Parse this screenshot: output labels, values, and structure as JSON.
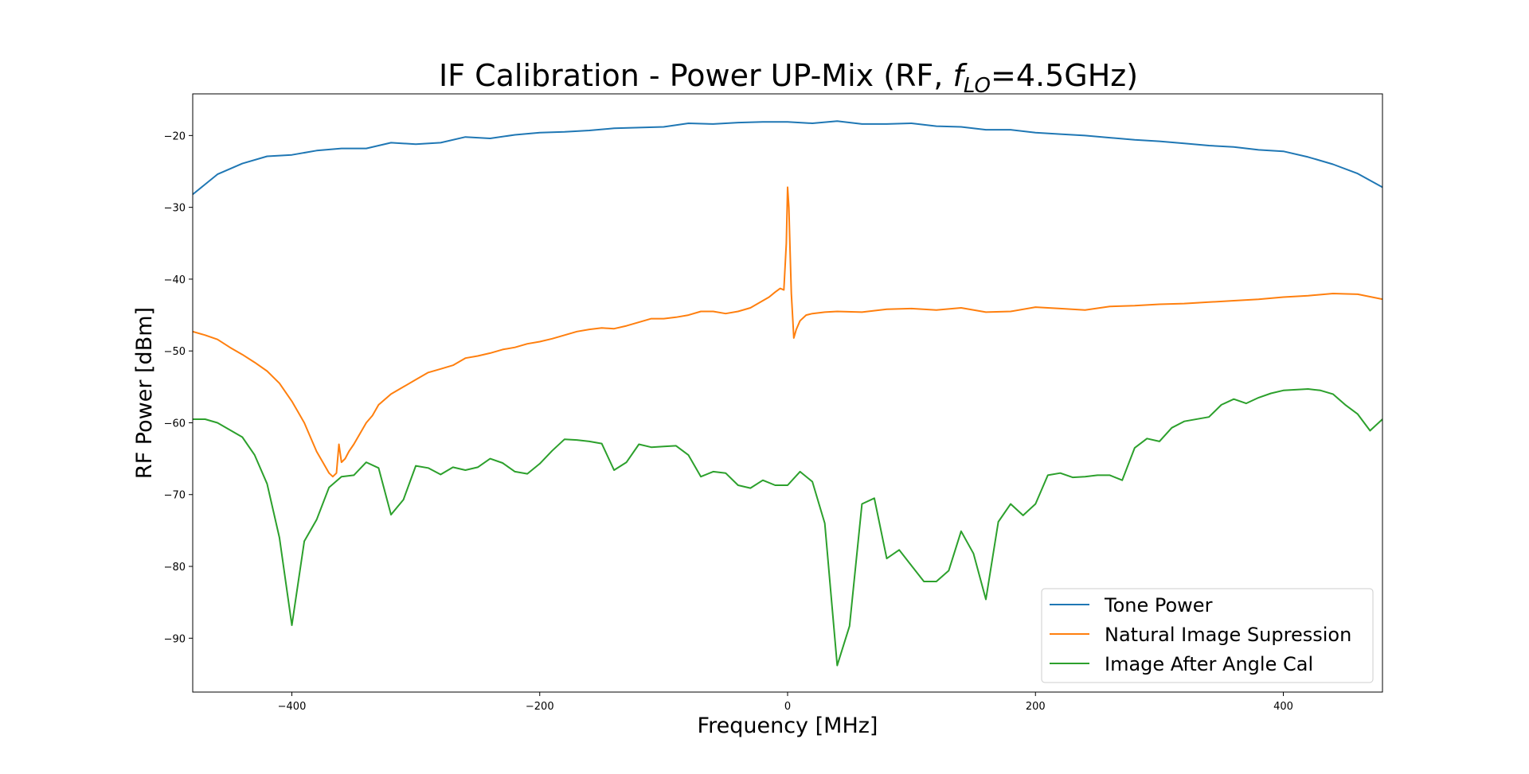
{
  "chart_data": {
    "type": "line",
    "title": {
      "prefix": "IF Calibration - Power UP-Mix (RF, ",
      "var": "f",
      "sub": "LO",
      "suffix": "=4.5GHz)"
    },
    "xlabel": "Frequency [MHz]",
    "ylabel": "RF Power [dBm]",
    "xlim": [
      -480,
      480
    ],
    "ylim": [
      -97.5,
      -14.2
    ],
    "xticks": [
      -400,
      -200,
      0,
      200,
      400
    ],
    "yticks": [
      -20,
      -30,
      -40,
      -50,
      -60,
      -70,
      -80,
      -90
    ],
    "ytick_labels": [
      "−20",
      "−30",
      "−40",
      "−50",
      "−60",
      "−70",
      "−80",
      "−90"
    ],
    "xtick_labels": [
      "−400",
      "−200",
      "0",
      "200",
      "400"
    ],
    "grid": false,
    "legend_position": "lower-right",
    "series": [
      {
        "name": "Tone Power",
        "color": "#1f77b4",
        "x": [
          -480,
          -460,
          -440,
          -420,
          -400,
          -380,
          -360,
          -340,
          -320,
          -300,
          -280,
          -260,
          -240,
          -220,
          -200,
          -180,
          -160,
          -140,
          -120,
          -100,
          -80,
          -60,
          -40,
          -20,
          0,
          20,
          40,
          60,
          80,
          100,
          120,
          140,
          160,
          180,
          200,
          220,
          240,
          260,
          280,
          300,
          320,
          340,
          360,
          380,
          400,
          420,
          440,
          460,
          480
        ],
        "y": [
          -28.2,
          -25.4,
          -23.9,
          -22.9,
          -22.7,
          -22.1,
          -21.8,
          -21.8,
          -21.0,
          -21.2,
          -21.0,
          -20.2,
          -20.4,
          -19.9,
          -19.6,
          -19.5,
          -19.3,
          -19.0,
          -18.9,
          -18.8,
          -18.3,
          -18.4,
          -18.2,
          -18.1,
          -18.1,
          -18.3,
          -18.0,
          -18.4,
          -18.4,
          -18.3,
          -18.7,
          -18.8,
          -19.2,
          -19.2,
          -19.6,
          -19.8,
          -20.0,
          -20.3,
          -20.6,
          -20.8,
          -21.1,
          -21.4,
          -21.6,
          -22.0,
          -22.2,
          -23.0,
          -24.0,
          -25.3,
          -27.2
        ]
      },
      {
        "name": "Natural Image Supression",
        "color": "#ff7f0e",
        "x": [
          -480,
          -470,
          -460,
          -450,
          -440,
          -430,
          -420,
          -410,
          -400,
          -395,
          -390,
          -385,
          -380,
          -375,
          -370,
          -367,
          -364,
          -362,
          -360,
          -357,
          -354,
          -350,
          -345,
          -340,
          -335,
          -330,
          -320,
          -310,
          -300,
          -290,
          -280,
          -270,
          -260,
          -250,
          -240,
          -230,
          -220,
          -210,
          -200,
          -190,
          -180,
          -170,
          -160,
          -150,
          -140,
          -130,
          -120,
          -110,
          -100,
          -90,
          -80,
          -70,
          -60,
          -50,
          -40,
          -30,
          -20,
          -15,
          -10,
          -6,
          -3,
          -1,
          0,
          1,
          2,
          3,
          5,
          7,
          10,
          15,
          20,
          30,
          40,
          60,
          80,
          100,
          120,
          140,
          160,
          180,
          200,
          220,
          240,
          260,
          280,
          300,
          320,
          340,
          360,
          380,
          400,
          420,
          440,
          460,
          480
        ],
        "y": [
          -47.3,
          -47.8,
          -48.4,
          -49.5,
          -50.5,
          -51.6,
          -52.8,
          -54.5,
          -57.0,
          -58.5,
          -60.0,
          -62.0,
          -64.0,
          -65.5,
          -67.0,
          -67.5,
          -67.0,
          -63.0,
          -65.5,
          -65.0,
          -64.0,
          -63.0,
          -61.5,
          -60.0,
          -59.0,
          -57.5,
          -56.0,
          -55.0,
          -54.0,
          -53.0,
          -52.5,
          -52.0,
          -51.0,
          -50.7,
          -50.3,
          -49.8,
          -49.5,
          -49.0,
          -48.7,
          -48.3,
          -47.8,
          -47.3,
          -47.0,
          -46.8,
          -46.9,
          -46.5,
          -46.0,
          -45.5,
          -45.5,
          -45.3,
          -45.0,
          -44.5,
          -44.5,
          -44.8,
          -44.5,
          -44.0,
          -43.0,
          -42.5,
          -41.8,
          -41.3,
          -41.5,
          -35.0,
          -27.2,
          -30.0,
          -36.0,
          -42.0,
          -48.2,
          -47.0,
          -45.8,
          -45.0,
          -44.8,
          -44.6,
          -44.5,
          -44.6,
          -44.2,
          -44.1,
          -44.3,
          -44.0,
          -44.6,
          -44.5,
          -43.9,
          -44.1,
          -44.3,
          -43.8,
          -43.7,
          -43.5,
          -43.4,
          -43.2,
          -43.0,
          -42.8,
          -42.5,
          -42.3,
          -42.0,
          -42.1,
          -42.8
        ]
      },
      {
        "name": "Image After Angle Cal",
        "color": "#2ca02c",
        "x": [
          -480,
          -470,
          -460,
          -440,
          -430,
          -420,
          -410,
          -400,
          -390,
          -380,
          -370,
          -360,
          -350,
          -340,
          -330,
          -320,
          -310,
          -300,
          -290,
          -280,
          -270,
          -260,
          -250,
          -240,
          -230,
          -220,
          -210,
          -200,
          -190,
          -180,
          -170,
          -160,
          -150,
          -140,
          -130,
          -120,
          -110,
          -100,
          -90,
          -80,
          -70,
          -60,
          -50,
          -40,
          -30,
          -20,
          -10,
          0,
          10,
          20,
          30,
          40,
          50,
          60,
          70,
          80,
          90,
          100,
          110,
          120,
          130,
          140,
          150,
          160,
          170,
          180,
          190,
          200,
          210,
          220,
          230,
          240,
          250,
          260,
          270,
          280,
          290,
          300,
          310,
          320,
          340,
          350,
          360,
          370,
          380,
          390,
          400,
          410,
          420,
          430,
          440,
          450,
          460,
          470,
          480
        ],
        "y": [
          -59.5,
          -59.5,
          -60.0,
          -62.0,
          -64.5,
          -68.5,
          -76.0,
          -88.2,
          -76.5,
          -73.5,
          -69.0,
          -67.5,
          -67.3,
          -65.5,
          -66.3,
          -72.8,
          -70.7,
          -66.0,
          -66.3,
          -67.2,
          -66.2,
          -66.6,
          -66.2,
          -65.0,
          -65.6,
          -66.8,
          -67.1,
          -65.7,
          -63.9,
          -62.3,
          -62.4,
          -62.6,
          -62.9,
          -66.6,
          -65.5,
          -63.0,
          -63.4,
          -63.3,
          -63.2,
          -64.5,
          -67.5,
          -66.8,
          -67.0,
          -68.7,
          -69.1,
          -68.0,
          -68.7,
          -68.7,
          -66.8,
          -68.2,
          -74.0,
          -93.8,
          -88.3,
          -71.3,
          -70.5,
          -78.9,
          -77.7,
          -79.9,
          -82.1,
          -82.1,
          -80.6,
          -75.1,
          -78.2,
          -84.6,
          -73.8,
          -71.3,
          -72.9,
          -71.3,
          -67.3,
          -67.0,
          -67.6,
          -67.5,
          -67.3,
          -67.3,
          -68.0,
          -63.5,
          -62.2,
          -62.6,
          -60.7,
          -59.8,
          -59.2,
          -57.5,
          -56.7,
          -57.3,
          -56.5,
          -55.9,
          -55.5,
          -55.4,
          -55.3,
          -55.5,
          -56.0,
          -57.5,
          -58.8,
          -61.1,
          -59.5
        ]
      }
    ]
  }
}
